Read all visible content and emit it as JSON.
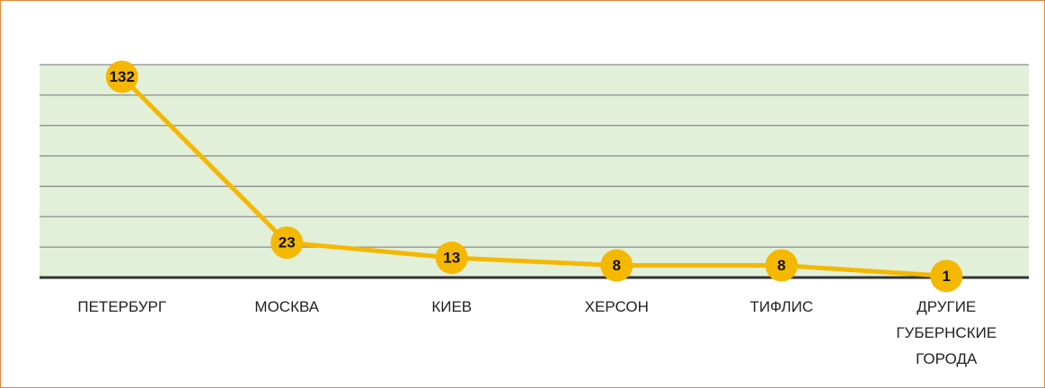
{
  "chart_data": {
    "type": "line",
    "categories": [
      "ПЕТЕРБУРГ",
      "МОСКВА",
      "КИЕВ",
      "ХЕРСОН",
      "ТИФЛИС",
      "ДРУГИЕ ГУБЕРНСКИЕ ГОРОДА"
    ],
    "values": [
      132,
      23,
      13,
      8,
      8,
      1
    ],
    "color": "#f5b800",
    "ylim": [
      0,
      140
    ],
    "yticks": [
      0,
      20,
      40,
      60,
      80,
      100,
      120,
      140
    ],
    "grid": true
  }
}
